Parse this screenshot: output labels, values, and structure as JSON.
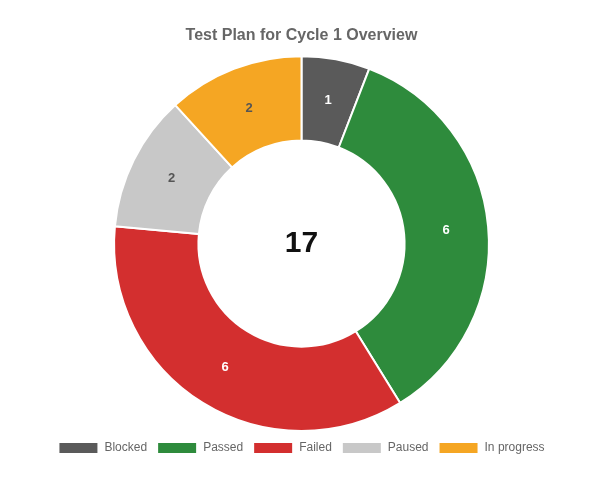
{
  "chart_data": {
    "type": "doughnut",
    "title": "Test Plan for Cycle 1 Overview",
    "categories": [
      "Blocked",
      "Passed",
      "Failed",
      "Paused",
      "In progress"
    ],
    "values": [
      1,
      6,
      6,
      2,
      2
    ],
    "colors": [
      "#5a5a5a",
      "#2e8b3c",
      "#d32f2f",
      "#c8c8c8",
      "#f5a623"
    ],
    "data_labels": true,
    "legend": "bottom",
    "annotations": [
      "17"
    ]
  }
}
